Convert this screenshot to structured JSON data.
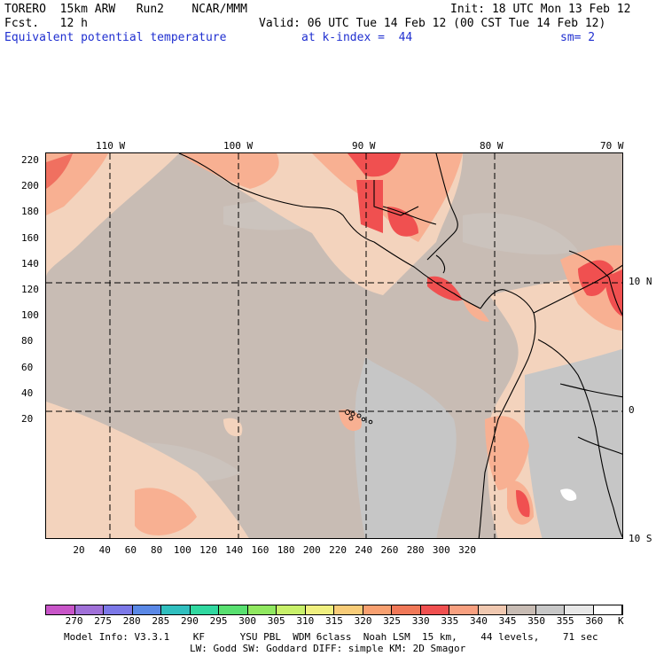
{
  "header": {
    "model": "TORERO  15km ARW   Run2    NCAR/MMM",
    "init": "Init: 18 UTC Mon 13 Feb 12",
    "fcst": "Fcst.   12 h",
    "valid": "Valid: 06 UTC Tue 14 Feb 12 (00 CST Tue 14 Feb 12)",
    "field": "Equivalent potential temperature",
    "level": "at k-index =  44",
    "smooth": "sm= 2"
  },
  "map": {
    "lon_labels": [
      "110 W",
      "100 W",
      "90 W",
      "80 W",
      "70 W"
    ],
    "lat_labels": [
      "10 N",
      "0",
      "10 S"
    ],
    "y_ticks": [
      "220",
      "200",
      "180",
      "160",
      "140",
      "120",
      "100",
      "80",
      "60",
      "40",
      "20"
    ],
    "x_ticks": [
      "20",
      "40",
      "60",
      "80",
      "100",
      "120",
      "140",
      "160",
      "180",
      "200",
      "220",
      "240",
      "260",
      "280",
      "300",
      "320"
    ],
    "colors": {
      "ocean": "#c8bcb4",
      "cool": "#c6c6c6",
      "warm_light": "#f3d3bd",
      "warm": "#f8b092",
      "hot": "#f05050",
      "peach": "#f7c8a3"
    }
  },
  "colorbar": {
    "labels": [
      "270",
      "275",
      "280",
      "285",
      "290",
      "295",
      "300",
      "305",
      "310",
      "315",
      "320",
      "325",
      "330",
      "335",
      "340",
      "345",
      "350",
      "355",
      "360"
    ],
    "unit": "K",
    "colors": [
      "#c855c8",
      "#a070d8",
      "#7c78e8",
      "#5a88e6",
      "#30bfbf",
      "#30d8a0",
      "#58e070",
      "#90e860",
      "#c8f06a",
      "#f0f080",
      "#f8cc78",
      "#f8a070",
      "#f07858",
      "#f05050",
      "#f8a080",
      "#f0c8b0",
      "#c8bcb4",
      "#c8c8c8",
      "#e8e8e8",
      "#ffffff"
    ]
  },
  "footer": {
    "line1": "Model Info: V3.3.1    KF      YSU PBL  WDM 6class  Noah LSM  15 km,    44 levels,    71 sec",
    "line2": "LW: Godd SW: Goddard DIFF: simple KM: 2D Smagor"
  }
}
